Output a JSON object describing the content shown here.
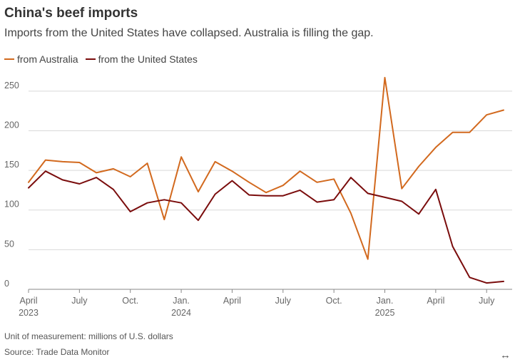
{
  "title": "China's beef imports",
  "subtitle": "Imports from the United States have collapsed. Australia is filling the gap.",
  "footnote_unit": "Unit of measurement: millions of U.S. dollars",
  "footnote_source": "Source: Trade Data Monitor",
  "expand_icon": "↔",
  "colors": {
    "australia": "#d2691e",
    "us": "#7a0c0c",
    "grid": "#d9d9d9",
    "axis": "#888888"
  },
  "chart_data": {
    "type": "line",
    "x": [
      "2023-04",
      "2023-05",
      "2023-06",
      "2023-07",
      "2023-08",
      "2023-09",
      "2023-10",
      "2023-11",
      "2023-12",
      "2024-01",
      "2024-02",
      "2024-03",
      "2024-04",
      "2024-05",
      "2024-06",
      "2024-07",
      "2024-08",
      "2024-09",
      "2024-10",
      "2024-11",
      "2024-12",
      "2025-01",
      "2025-02",
      "2025-03",
      "2025-04",
      "2025-05",
      "2025-06",
      "2025-07",
      "2025-08"
    ],
    "series": [
      {
        "name": "from Australia",
        "color": "#d2691e",
        "values": [
          135,
          163,
          161,
          160,
          147,
          152,
          142,
          159,
          88,
          167,
          123,
          161,
          149,
          135,
          122,
          131,
          149,
          135,
          139,
          96,
          38,
          267,
          127,
          155,
          179,
          198,
          198,
          220,
          226
        ]
      },
      {
        "name": "from the United States",
        "color": "#7a0c0c",
        "values": [
          128,
          149,
          138,
          133,
          141,
          126,
          98,
          109,
          113,
          109,
          87,
          120,
          137,
          119,
          118,
          118,
          125,
          110,
          113,
          141,
          121,
          116,
          111,
          95,
          126,
          54,
          15,
          8,
          10
        ]
      }
    ],
    "yticks": [
      0,
      50,
      100,
      150,
      200,
      250
    ],
    "ylim": [
      0,
      275
    ],
    "xticks": [
      {
        "x": "2023-04",
        "label": "April",
        "year": "2023"
      },
      {
        "x": "2023-07",
        "label": "July",
        "year": ""
      },
      {
        "x": "2023-10",
        "label": "Oct.",
        "year": ""
      },
      {
        "x": "2024-01",
        "label": "Jan.",
        "year": "2024"
      },
      {
        "x": "2024-04",
        "label": "April",
        "year": ""
      },
      {
        "x": "2024-07",
        "label": "July",
        "year": ""
      },
      {
        "x": "2024-10",
        "label": "Oct.",
        "year": ""
      },
      {
        "x": "2025-01",
        "label": "Jan.",
        "year": "2025"
      },
      {
        "x": "2025-04",
        "label": "April",
        "year": ""
      },
      {
        "x": "2025-07",
        "label": "July",
        "year": ""
      }
    ],
    "grid": true,
    "legend_position": "top-left"
  }
}
